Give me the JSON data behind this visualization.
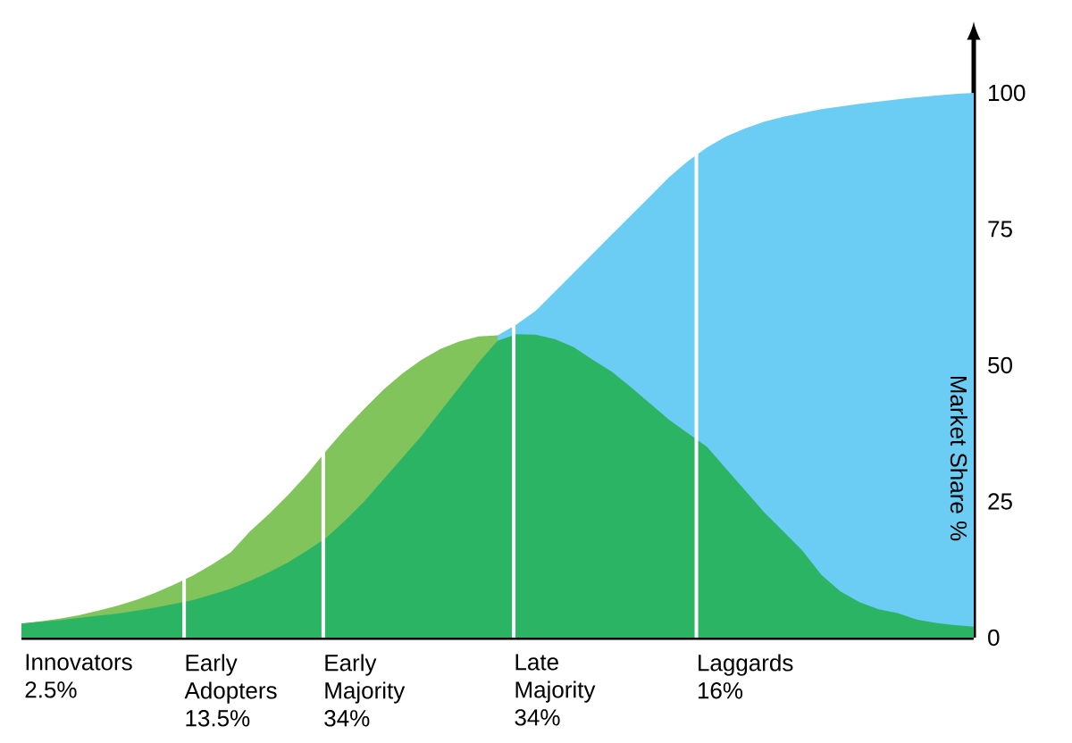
{
  "chart_data": {
    "type": "area",
    "ylabel": "Market Share %",
    "ylim": [
      0,
      100
    ],
    "yticks": [
      0,
      25,
      50,
      75,
      100
    ],
    "categories": [
      null,
      null,
      null,
      "Innovators 2.5%",
      null,
      null,
      null,
      null,
      null,
      null,
      null,
      "Early Adopters 13.5%",
      null,
      null,
      null,
      null,
      null,
      null,
      "Early Majority 34%",
      null,
      null,
      null,
      null,
      null,
      null,
      null,
      null,
      null,
      "Late Majority 34%",
      null,
      null,
      null,
      null,
      null,
      null,
      null,
      null,
      null,
      "Laggards 16%",
      null,
      null,
      null,
      null,
      null,
      null,
      null,
      null,
      null,
      null,
      null,
      null
    ],
    "series": [
      {
        "color": "#6ccdf4",
        "values": [
          null,
          null,
          null,
          null,
          null,
          null,
          null,
          null,
          null,
          null,
          null,
          null,
          null,
          null,
          null,
          null,
          null,
          null,
          null,
          null,
          null,
          null,
          null,
          null,
          null,
          55.5,
          57.5,
          60,
          63.5,
          67,
          70.5,
          74,
          77.5,
          81,
          84.5,
          87.5,
          90,
          92,
          93.5,
          94.7,
          95.6,
          96.3,
          97,
          97.5,
          98,
          98.4,
          98.8,
          99.2,
          99.5,
          99.8,
          100
        ]
      },
      {
        "color": "#82c45c",
        "values": [
          2.6,
          3,
          3.5,
          4.1,
          4.9,
          5.8,
          6.9,
          8.2,
          9.7,
          11.4,
          13.4,
          15.7,
          19.5,
          22.7,
          26.2,
          30,
          34.3,
          38.3,
          42,
          45.5,
          48.5,
          51,
          53,
          54.4,
          55.3,
          55.5,
          null,
          null,
          null,
          null,
          null,
          null,
          null,
          null,
          null,
          null,
          null,
          null,
          null,
          null,
          null,
          null,
          null,
          null,
          null,
          null,
          null,
          null,
          null,
          null,
          null
        ]
      },
      {
        "color": "#2bb463",
        "values": [
          2.6,
          2.9,
          3.2,
          3.6,
          4,
          4.4,
          4.9,
          5.5,
          6.2,
          6.9,
          7.9,
          9,
          10.4,
          12,
          13.8,
          16,
          18.3,
          21.5,
          25,
          29,
          33,
          37,
          41.5,
          46,
          50.5,
          54.5,
          55.7,
          55.6,
          54.8,
          53.3,
          51,
          48.8,
          46,
          43,
          40,
          37.5,
          35,
          31,
          27,
          23,
          19.5,
          16,
          11.5,
          8.5,
          6.5,
          5.2,
          4.5,
          3.3,
          2.7,
          2.3,
          2
        ]
      }
    ]
  }
}
